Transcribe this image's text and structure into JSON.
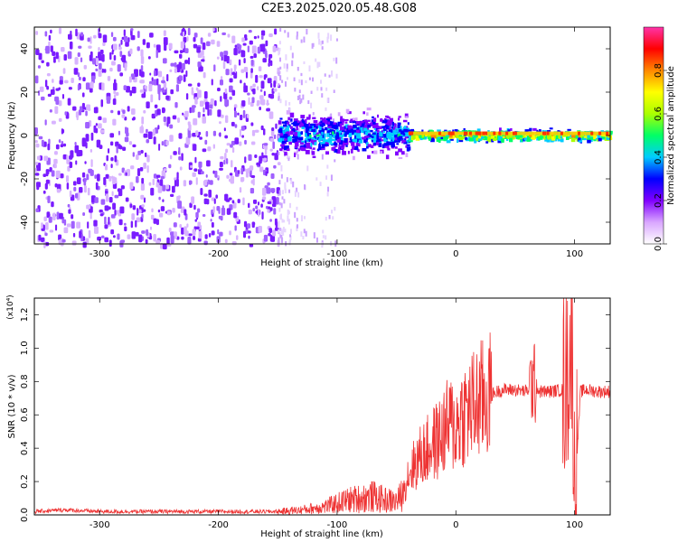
{
  "title": "C2E3.2025.020.05.48.G08",
  "chart_data": [
    {
      "type": "heatmap",
      "title": "C2E3.2025.020.05.48.G08",
      "xlabel": "Height of straight line (km)",
      "ylabel": "Frequency (Hz)",
      "xlim": [
        -355,
        130
      ],
      "ylim": [
        -50,
        50
      ],
      "xticks": [
        -300,
        -200,
        -100,
        0,
        100
      ],
      "yticks": [
        -40,
        -20,
        0,
        20,
        40
      ],
      "colorbar": {
        "label": "Normalized spectral amplitude",
        "range": [
          0.0,
          1.0
        ],
        "ticks": [
          "0.0",
          "0.2",
          "0.4",
          "0.6",
          "0.8"
        ],
        "colors": [
          "#ffffff",
          "#d9a6ff",
          "#8000ff",
          "#0000ff",
          "#00ccff",
          "#00ff66",
          "#aaff00",
          "#ffff00",
          "#ff8800",
          "#ff0000",
          "#ff33aa"
        ]
      },
      "features": [
        {
          "x_range": [
            -355,
            -150
          ],
          "freq_range": [
            -50,
            50
          ],
          "amplitude": 0.1,
          "description_key": "broadband noise"
        },
        {
          "x_range": [
            -150,
            -40
          ],
          "freq_range": [
            -12,
            14
          ],
          "amplitude": 0.3
        },
        {
          "x_range": [
            -40,
            130
          ],
          "freq_range": [
            -3,
            4
          ],
          "amplitude": 0.55
        }
      ]
    },
    {
      "type": "line",
      "xlabel": "Height of straight line (km)",
      "ylabel": "SNR (10 * v/v)",
      "y_multiplier": "(x10⁴)",
      "xlim": [
        -355,
        130
      ],
      "ylim": [
        0,
        1.3
      ],
      "xticks": [
        -300,
        -200,
        -100,
        0,
        100
      ],
      "yticks": [
        "0.0",
        "0.2",
        "0.4",
        "0.6",
        "0.8",
        "1.0",
        "1.2"
      ],
      "color": "#ee3333",
      "series": [
        {
          "x": [
            -355,
            -330,
            -300,
            -260,
            -220,
            -180,
            -150,
            -130,
            -110,
            -100,
            -90,
            -80,
            -70,
            -60,
            -50,
            -45,
            -40,
            -35,
            -30,
            -25,
            -20,
            -15,
            -10,
            -5,
            0,
            5,
            10,
            15,
            20,
            25,
            30,
            35,
            40,
            50,
            60,
            65,
            70,
            80,
            90,
            95,
            98,
            100,
            105,
            110,
            120,
            130
          ],
          "y": [
            0.02,
            0.03,
            0.02,
            0.02,
            0.02,
            0.02,
            0.02,
            0.03,
            0.05,
            0.07,
            0.09,
            0.1,
            0.11,
            0.09,
            0.08,
            0.12,
            0.25,
            0.3,
            0.35,
            0.38,
            0.42,
            0.45,
            0.5,
            0.55,
            0.52,
            0.6,
            0.62,
            0.65,
            0.68,
            0.7,
            0.72,
            0.74,
            0.75,
            0.75,
            0.74,
            0.8,
            0.74,
            0.74,
            0.75,
            0.9,
            1.1,
            0.1,
            0.74,
            0.75,
            0.74,
            0.74
          ]
        }
      ]
    }
  ]
}
